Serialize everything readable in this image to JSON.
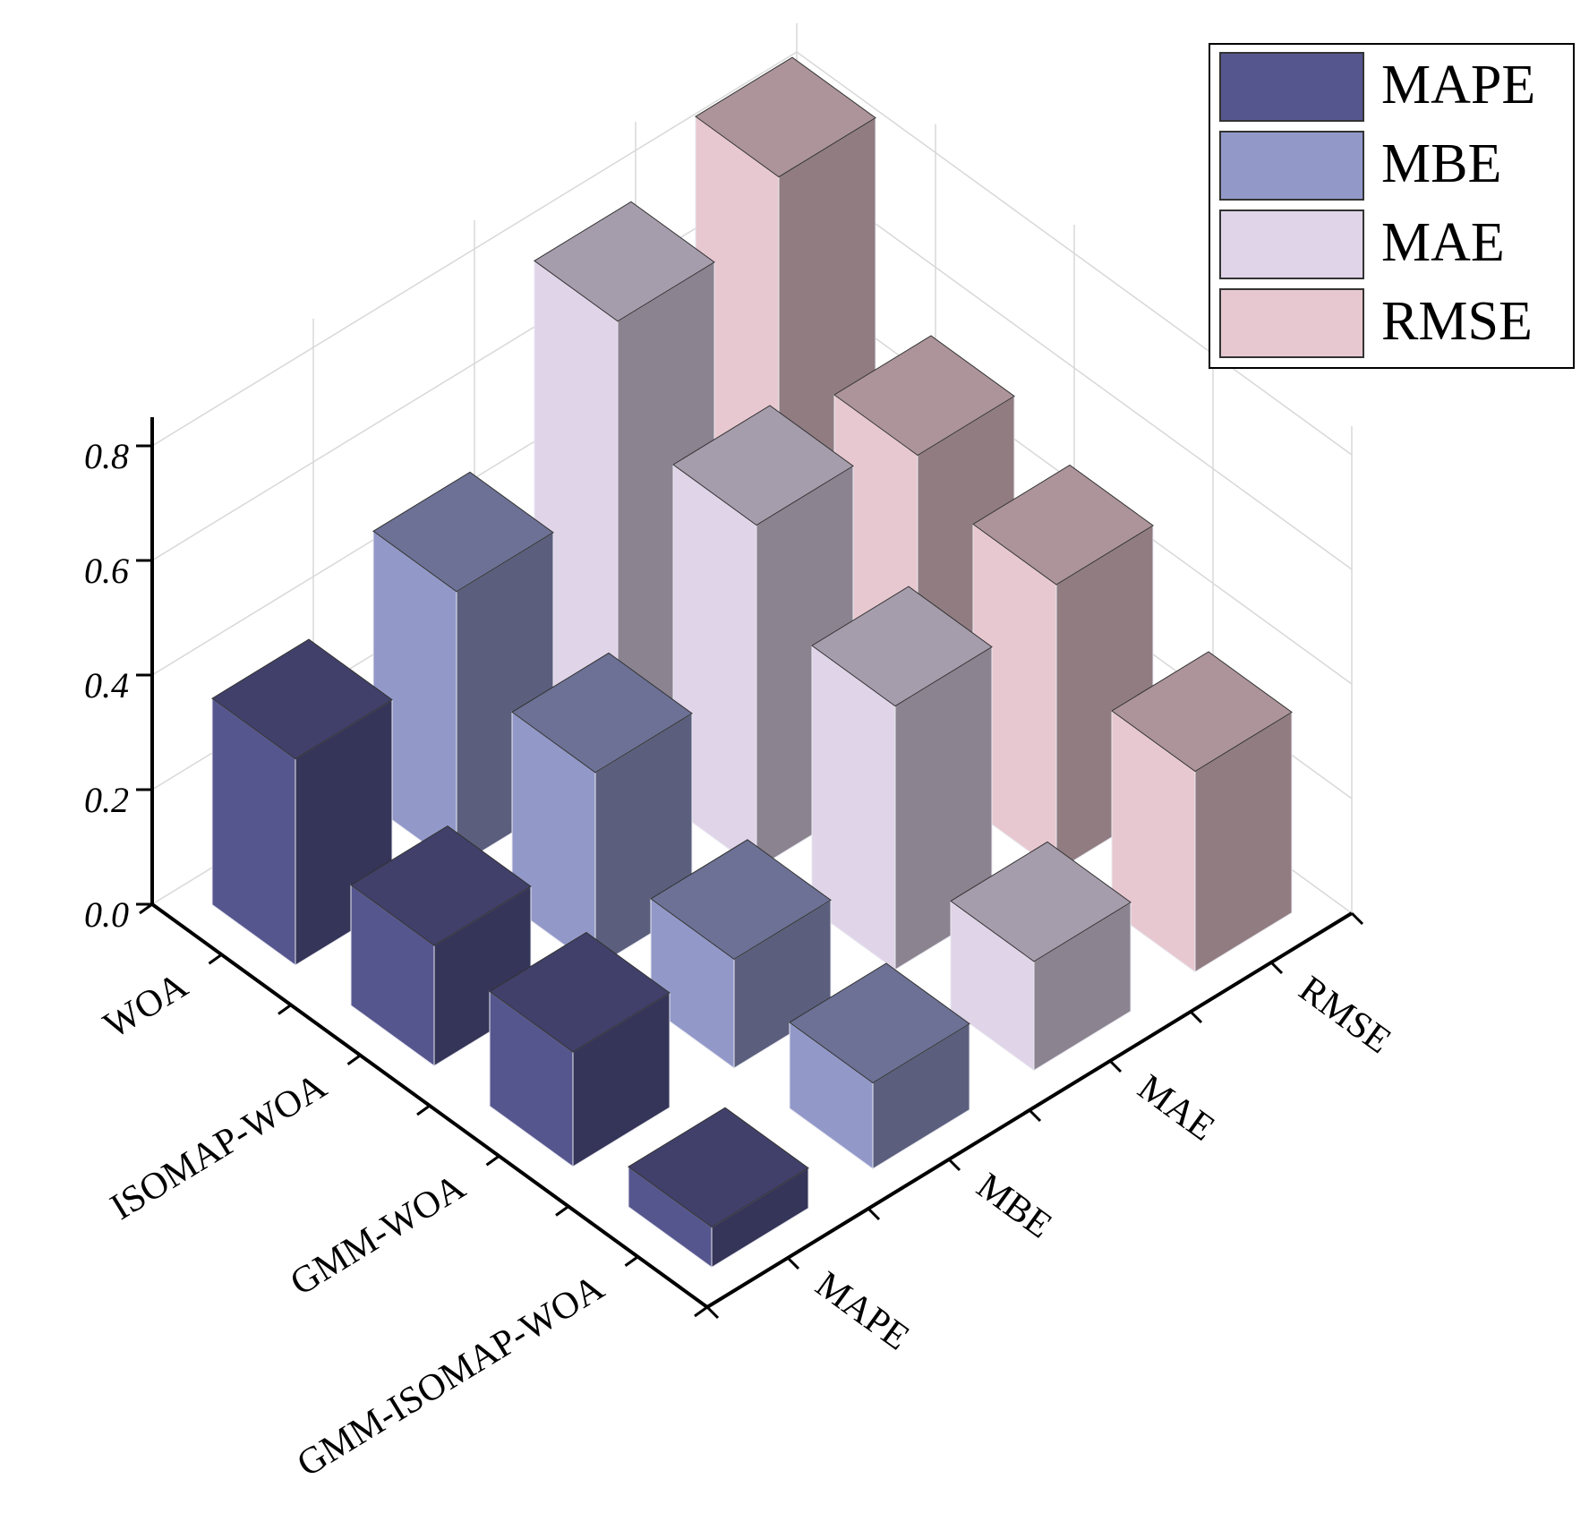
{
  "chart_data": {
    "type": "bar3d",
    "categories": [
      "WOA",
      "ISOMAP-WOA",
      "GMM-WOA",
      "GMM-ISOMAP-WOA"
    ],
    "series": [
      {
        "name": "MAPE",
        "color": "#56568f",
        "values": [
          0.36,
          0.21,
          0.2,
          0.07
        ]
      },
      {
        "name": "MBE",
        "color": "#9299c9",
        "values": [
          0.48,
          0.34,
          0.19,
          0.15
        ]
      },
      {
        "name": "MAE",
        "color": "#e0d4e8",
        "values": [
          0.78,
          0.6,
          0.46,
          0.19
        ]
      },
      {
        "name": "RMSE",
        "color": "#e8c8d0",
        "values": [
          0.86,
          0.55,
          0.5,
          0.35
        ]
      }
    ],
    "ylim": [
      0,
      0.85
    ],
    "yticks": [
      {
        "value": 0,
        "label": "0.0"
      },
      0.2,
      0.4,
      0.6,
      0.8
    ],
    "grid": true,
    "legend": "upper right"
  }
}
